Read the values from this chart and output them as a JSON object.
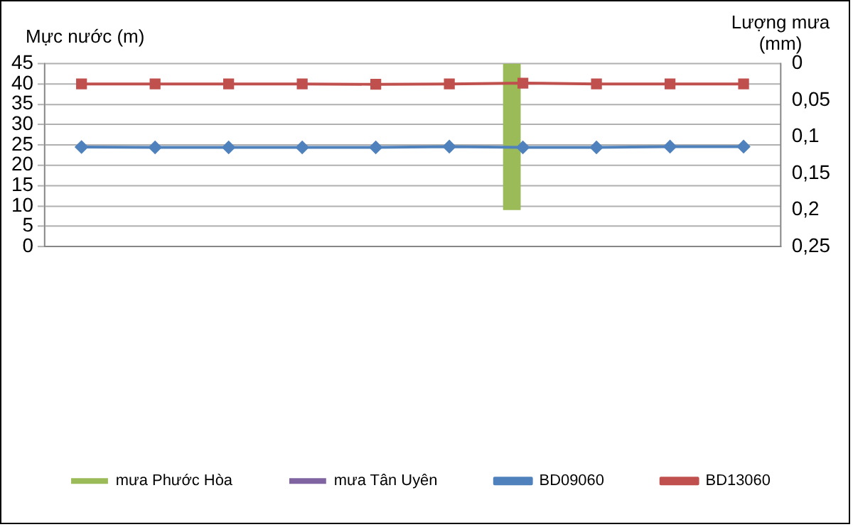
{
  "chart_data": {
    "type": "bar",
    "categories": [
      null,
      null,
      null,
      null,
      null,
      null,
      null,
      null,
      null,
      null
    ],
    "series": [
      {
        "name": "mưa Phước Hòa",
        "axis": "y2",
        "color": "#9bbb59",
        "values": [
          0,
          0,
          0,
          0,
          0,
          0,
          0.2,
          0,
          0,
          0
        ]
      },
      {
        "name": "mưa Tân Uyên",
        "axis": "y2",
        "color": "#8064a2",
        "values": [
          0,
          0,
          0,
          0,
          0,
          0,
          0,
          0,
          0,
          0
        ]
      },
      {
        "name": "BD09060",
        "type": "line",
        "marker": "diamond",
        "color": "#4f81bd",
        "values": [
          24.5,
          24.4,
          24.4,
          24.4,
          24.4,
          24.6,
          24.4,
          24.4,
          24.6,
          24.6
        ]
      },
      {
        "name": "BD13060",
        "type": "line",
        "marker": "square",
        "color": "#c0504d",
        "values": [
          40,
          40,
          40,
          40,
          39.9,
          40,
          40.2,
          40,
          40,
          40
        ]
      }
    ],
    "ylabel": "Mực nước (m)",
    "y2label": "Lượng mưa (mm)",
    "ylim": [
      0,
      45
    ],
    "yticks": [
      0,
      5,
      10,
      15,
      20,
      25,
      30,
      35,
      40,
      45
    ],
    "y2lim": [
      0.25,
      0
    ],
    "y2ticks": [
      0,
      {
        "value": 0.05,
        "label": "0,05"
      },
      {
        "value": 0.1,
        "label": "0,1"
      },
      {
        "value": 0.15,
        "label": "0,15"
      },
      {
        "value": 0.2,
        "label": "0,2"
      },
      {
        "value": 0.25,
        "label": "0,25"
      }
    ],
    "grid": "y",
    "legend": "bottom"
  }
}
